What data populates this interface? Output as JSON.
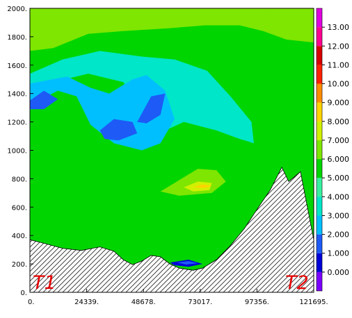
{
  "chart_data": {
    "type": "heatmap",
    "title": "",
    "xlabel": "",
    "ylabel": "",
    "xlim": [
      0,
      121695
    ],
    "ylim": [
      0,
      2000
    ],
    "x_tick_labels": [
      "0.",
      "24339.",
      "48678.",
      "73017.",
      "97356.",
      "121695."
    ],
    "y_tick_labels": [
      "0.",
      "200.",
      "400.",
      "600.",
      "800.",
      "1000.",
      "1200.",
      "1400.",
      "1600.",
      "1800.",
      "2000."
    ],
    "corner_labels": {
      "left": "T1",
      "right": "T2"
    },
    "colorbar": {
      "tick_labels": [
        "0.000",
        "1.000",
        "2.000",
        "3.000",
        "4.000",
        "5.000",
        "6.000",
        "7.000",
        "8.000",
        "9.000",
        "10.00",
        "11.00",
        "12.00",
        "13.00"
      ],
      "bands": [
        {
          "lo": -1,
          "hi": 0,
          "color": "#7a00ff"
        },
        {
          "lo": 0,
          "hi": 1,
          "color": "#0000d8"
        },
        {
          "lo": 1,
          "hi": 2,
          "color": "#1e5af5"
        },
        {
          "lo": 2,
          "hi": 3,
          "color": "#00bfff"
        },
        {
          "lo": 3,
          "hi": 4,
          "color": "#00e6c8"
        },
        {
          "lo": 4,
          "hi": 5,
          "color": "#38f0a0"
        },
        {
          "lo": 5,
          "hi": 6,
          "color": "#00d500"
        },
        {
          "lo": 6,
          "hi": 7,
          "color": "#7ee600"
        },
        {
          "lo": 7,
          "hi": 8,
          "color": "#d2f000"
        },
        {
          "lo": 8,
          "hi": 9,
          "color": "#ffd400"
        },
        {
          "lo": 9,
          "hi": 10,
          "color": "#ff8c00"
        },
        {
          "lo": 10,
          "hi": 11,
          "color": "#ff2200"
        },
        {
          "lo": 11,
          "hi": 12,
          "color": "#d80000"
        },
        {
          "lo": 12,
          "hi": 13,
          "color": "#ff0090"
        },
        {
          "lo": 13,
          "hi": 14,
          "color": "#e000e0"
        }
      ]
    },
    "terrain": [
      [
        0,
        370
      ],
      [
        6000,
        345
      ],
      [
        14000,
        310
      ],
      [
        22000,
        295
      ],
      [
        30000,
        320
      ],
      [
        36000,
        290
      ],
      [
        40000,
        230
      ],
      [
        44000,
        195
      ],
      [
        48000,
        220
      ],
      [
        52000,
        260
      ],
      [
        56000,
        250
      ],
      [
        60000,
        200
      ],
      [
        64000,
        170
      ],
      [
        70000,
        155
      ],
      [
        74000,
        170
      ],
      [
        80000,
        230
      ],
      [
        86000,
        330
      ],
      [
        92000,
        450
      ],
      [
        98000,
        600
      ],
      [
        103000,
        720
      ],
      [
        108000,
        880
      ],
      [
        111000,
        780
      ],
      [
        116000,
        850
      ],
      [
        121695,
        370
      ]
    ],
    "contour_regions": [
      {
        "level": 0.5,
        "points": [
          [
            0,
            400
          ],
          [
            10000,
            400
          ],
          [
            25000,
            390
          ],
          [
            40000,
            355
          ],
          [
            55000,
            360
          ],
          [
            70000,
            370
          ],
          [
            80000,
            420
          ],
          [
            87000,
            510
          ],
          [
            95000,
            650
          ],
          [
            101000,
            790
          ],
          [
            106000,
            830
          ],
          [
            110000,
            760
          ],
          [
            116000,
            800
          ],
          [
            121695,
            400
          ],
          [
            121695,
            0
          ],
          [
            0,
            0
          ]
        ]
      },
      {
        "level": 1.5,
        "points": [
          [
            0,
            470
          ],
          [
            15000,
            490
          ],
          [
            30000,
            470
          ],
          [
            45000,
            450
          ],
          [
            60000,
            470
          ],
          [
            75000,
            490
          ],
          [
            85000,
            540
          ],
          [
            95000,
            700
          ],
          [
            102000,
            850
          ],
          [
            107000,
            920
          ],
          [
            111000,
            880
          ],
          [
            116000,
            900
          ],
          [
            121695,
            500
          ],
          [
            121695,
            0
          ],
          [
            0,
            0
          ]
        ]
      },
      {
        "level": 2.5,
        "points": [
          [
            0,
            520
          ],
          [
            15000,
            560
          ],
          [
            35000,
            550
          ],
          [
            50000,
            520
          ],
          [
            65000,
            540
          ],
          [
            78000,
            580
          ],
          [
            88000,
            650
          ],
          [
            98000,
            900
          ],
          [
            103000,
            1000
          ],
          [
            108000,
            1060
          ],
          [
            112000,
            900
          ],
          [
            116000,
            980
          ],
          [
            121695,
            550
          ],
          [
            121695,
            0
          ],
          [
            0,
            0
          ]
        ]
      },
      {
        "level": 3.5,
        "points": [
          [
            0,
            560
          ],
          [
            20000,
            640
          ],
          [
            40000,
            610
          ],
          [
            60000,
            600
          ],
          [
            80000,
            660
          ],
          [
            95000,
            1000
          ],
          [
            100000,
            1140
          ],
          [
            106000,
            1200
          ],
          [
            113000,
            1080
          ],
          [
            121695,
            1250
          ],
          [
            121695,
            0
          ],
          [
            0,
            0
          ]
        ]
      },
      {
        "level": 4.5,
        "points": [
          [
            0,
            620
          ],
          [
            10000,
            780
          ],
          [
            18000,
            900
          ],
          [
            30000,
            930
          ],
          [
            45000,
            1000
          ],
          [
            60000,
            980
          ],
          [
            72000,
            1010
          ],
          [
            82000,
            1070
          ],
          [
            94000,
            1150
          ],
          [
            104000,
            1380
          ],
          [
            112000,
            1500
          ],
          [
            121695,
            1500
          ],
          [
            121695,
            0
          ],
          [
            0,
            0
          ]
        ]
      },
      {
        "level": 5.5,
        "points": [
          [
            0,
            1700
          ],
          [
            10000,
            1720
          ],
          [
            25000,
            1820
          ],
          [
            40000,
            1840
          ],
          [
            60000,
            1860
          ],
          [
            75000,
            1880
          ],
          [
            90000,
            1880
          ],
          [
            100000,
            1840
          ],
          [
            110000,
            1780
          ],
          [
            121695,
            1760
          ],
          [
            121695,
            0
          ],
          [
            0,
            0
          ]
        ]
      },
      {
        "level": 3.5,
        "points": [
          [
            0,
            1280
          ],
          [
            10000,
            1480
          ],
          [
            25000,
            1540
          ],
          [
            40000,
            1480
          ],
          [
            50000,
            1260
          ],
          [
            58000,
            1140
          ],
          [
            66000,
            1200
          ],
          [
            80000,
            1140
          ],
          [
            90000,
            1080
          ],
          [
            96000,
            1050
          ],
          [
            95000,
            1200
          ],
          [
            86000,
            1380
          ],
          [
            76000,
            1560
          ],
          [
            62000,
            1640
          ],
          [
            48000,
            1660
          ],
          [
            30000,
            1700
          ],
          [
            14000,
            1640
          ],
          [
            0,
            1540
          ]
        ]
      },
      {
        "level": 2.5,
        "points": [
          [
            0,
            1320
          ],
          [
            12000,
            1420
          ],
          [
            20000,
            1380
          ],
          [
            26000,
            1180
          ],
          [
            36000,
            1050
          ],
          [
            48000,
            1000
          ],
          [
            56000,
            1050
          ],
          [
            62000,
            1220
          ],
          [
            58000,
            1420
          ],
          [
            50000,
            1530
          ],
          [
            44000,
            1500
          ],
          [
            34000,
            1400
          ],
          [
            26000,
            1440
          ],
          [
            16000,
            1520
          ],
          [
            0,
            1470
          ]
        ]
      },
      {
        "level": 1.5,
        "points": [
          [
            0,
            1350
          ],
          [
            6000,
            1420
          ],
          [
            12000,
            1360
          ],
          [
            6000,
            1290
          ],
          [
            0,
            1290
          ]
        ]
      },
      {
        "level": 1.5,
        "points": [
          [
            30000,
            1140
          ],
          [
            36000,
            1220
          ],
          [
            44000,
            1200
          ],
          [
            46000,
            1120
          ],
          [
            38000,
            1070
          ],
          [
            32000,
            1080
          ]
        ]
      },
      {
        "level": 1.5,
        "points": [
          [
            46000,
            1200
          ],
          [
            52000,
            1380
          ],
          [
            58000,
            1400
          ],
          [
            56000,
            1250
          ],
          [
            50000,
            1190
          ]
        ]
      },
      {
        "level": 5.5,
        "points": [
          [
            8000,
            880
          ],
          [
            20000,
            900
          ],
          [
            32000,
            940
          ],
          [
            48000,
            920
          ],
          [
            60000,
            890
          ],
          [
            72000,
            950
          ],
          [
            80000,
            930
          ],
          [
            86000,
            820
          ],
          [
            80000,
            700
          ],
          [
            64000,
            680
          ],
          [
            50000,
            730
          ],
          [
            38000,
            810
          ],
          [
            20000,
            830
          ],
          [
            8000,
            860
          ]
        ]
      },
      {
        "level": 6.5,
        "points": [
          [
            56000,
            710
          ],
          [
            64000,
            790
          ],
          [
            72000,
            870
          ],
          [
            80000,
            860
          ],
          [
            84000,
            780
          ],
          [
            78000,
            700
          ],
          [
            64000,
            680
          ]
        ]
      },
      {
        "level": 7.5,
        "points": [
          [
            66000,
            740
          ],
          [
            72000,
            780
          ],
          [
            78000,
            770
          ],
          [
            77000,
            720
          ],
          [
            70000,
            710
          ]
        ]
      },
      {
        "level": 8.5,
        "points": [
          [
            70000,
            740
          ],
          [
            74000,
            760
          ],
          [
            78000,
            750
          ],
          [
            75000,
            735
          ]
        ]
      },
      {
        "level": 6.5,
        "points": [
          [
            88000,
            2000
          ],
          [
            104000,
            2000
          ],
          [
            103000,
            1980
          ],
          [
            88000,
            1970
          ]
        ]
      },
      {
        "level": 0.5,
        "points": [
          [
            60000,
            210
          ],
          [
            68000,
            230
          ],
          [
            74000,
            200
          ],
          [
            68000,
            180
          ],
          [
            62000,
            190
          ]
        ]
      },
      {
        "level": 1.5,
        "points": [
          [
            63000,
            210
          ],
          [
            68000,
            220
          ],
          [
            72000,
            205
          ],
          [
            67000,
            195
          ]
        ]
      }
    ]
  }
}
